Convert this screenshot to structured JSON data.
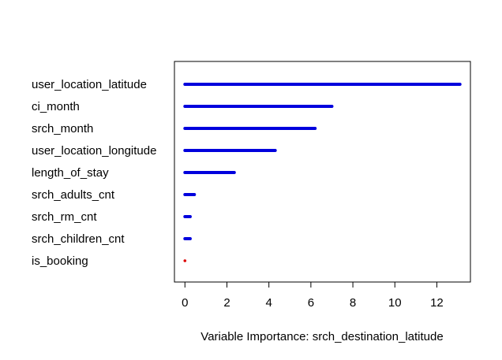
{
  "chart_data": {
    "type": "bar",
    "orientation": "horizontal",
    "title": "",
    "xlabel": "Variable Importance: srch_destination_latitude",
    "ylabel": "",
    "xlim": [
      -0.5,
      13.6
    ],
    "xticks": [
      0,
      2,
      4,
      6,
      8,
      10,
      12
    ],
    "grid": false,
    "legend": "none",
    "categories": [
      "user_location_latitude",
      "ci_month",
      "srch_month",
      "user_location_longitude",
      "length_of_stay",
      "srch_adults_cnt",
      "srch_rm_cnt",
      "srch_children_cnt",
      "is_booking"
    ],
    "values": [
      13.1,
      7.0,
      6.2,
      4.3,
      2.35,
      0.45,
      0.25,
      0.25,
      0.02
    ],
    "bar_color": "#0000dd",
    "zero_color": "#dd0000"
  }
}
